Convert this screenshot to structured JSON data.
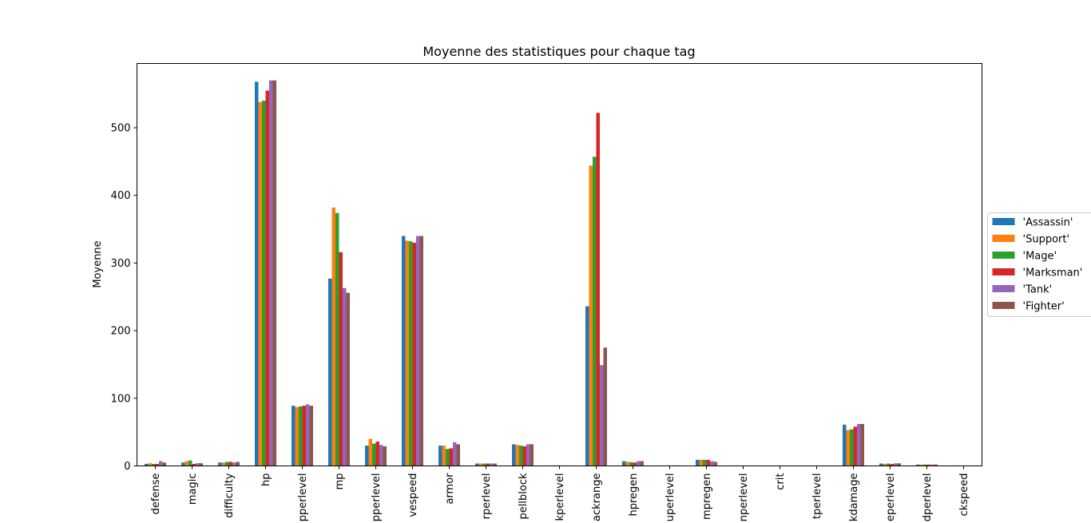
{
  "chart_data": {
    "type": "bar",
    "title": "Moyenne des statistiques pour chaque tag",
    "xlabel": "",
    "ylabel": "Moyenne",
    "ylim": [
      0,
      595
    ],
    "yticks": [
      0,
      100,
      200,
      300,
      400,
      500
    ],
    "grid": false,
    "legend_position": "right",
    "categories": [
      "defense",
      "magic",
      "difficulty",
      "hp",
      "pperlevel",
      "mp",
      "pperlevel",
      "vespeed",
      "armor",
      "rperlevel",
      "pellblock",
      "kperlevel",
      "ackrange",
      "hpregen",
      "uperlevel",
      "mpregen",
      "nperlevel",
      "crit",
      "tperlevel",
      "kdamage",
      "eperlevel",
      "dperlevel",
      "ckspeed"
    ],
    "series": [
      {
        "name": "'Assassin'",
        "color": "#1f77b4",
        "values": [
          3,
          5,
          5,
          568,
          89,
          277,
          30,
          340,
          30,
          3.5,
          32,
          0.7,
          236,
          7,
          0.6,
          9,
          0.7,
          0,
          0,
          61,
          3.5,
          2,
          0.7
        ]
      },
      {
        "name": "'Support'",
        "color": "#ff7f0e",
        "values": [
          4,
          7,
          5,
          538,
          87,
          382,
          40,
          333,
          30,
          3.5,
          31,
          0.8,
          444,
          6,
          0.7,
          9,
          0.8,
          0,
          0,
          53,
          3,
          2,
          0.7
        ]
      },
      {
        "name": "'Mage'",
        "color": "#2ca02c",
        "values": [
          3,
          8,
          6,
          540,
          88,
          374,
          33,
          332,
          25,
          3.5,
          30,
          0.7,
          457,
          5.5,
          0.7,
          9,
          0.6,
          0,
          0,
          54,
          3.5,
          2,
          0.6
        ]
      },
      {
        "name": "'Marksman'",
        "color": "#d62728",
        "values": [
          3,
          3,
          6,
          555,
          89,
          316,
          36,
          330,
          26,
          3.5,
          29,
          0.6,
          522,
          5,
          0.6,
          9,
          0.6,
          0,
          0,
          58,
          2.8,
          2,
          0.6
        ]
      },
      {
        "name": "'Tank'",
        "color": "#9467bd",
        "values": [
          7,
          4,
          5,
          570,
          91,
          263,
          31,
          340,
          35,
          3.5,
          32,
          0.7,
          149,
          7,
          0.7,
          7,
          0.6,
          0,
          0,
          62,
          3.8,
          2,
          0.6
        ]
      },
      {
        "name": "'Fighter'",
        "color": "#8c564b",
        "values": [
          5,
          4,
          6,
          570,
          89,
          256,
          29,
          340,
          32,
          3.5,
          32,
          0.7,
          175,
          7,
          0.7,
          6,
          0.7,
          0,
          0,
          62,
          3.8,
          2,
          0.6
        ]
      }
    ]
  }
}
